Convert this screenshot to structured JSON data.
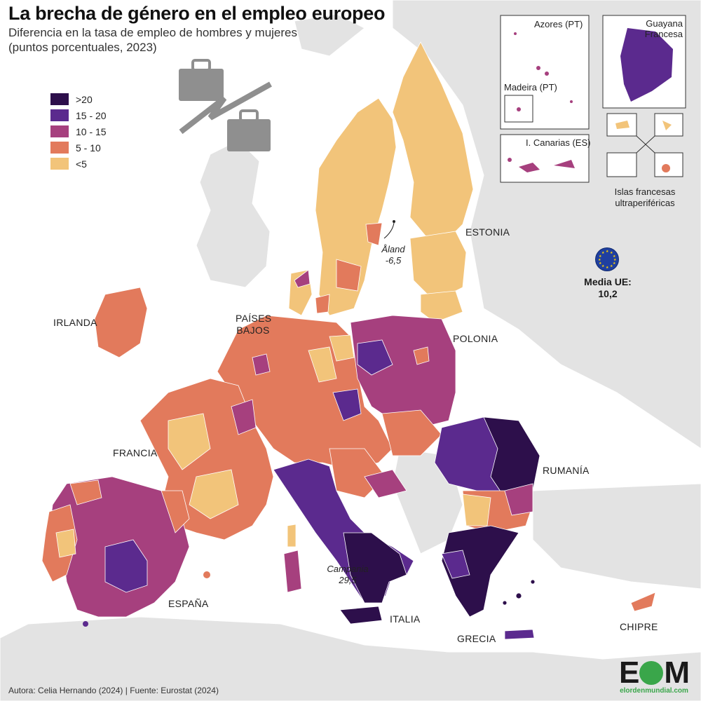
{
  "header": {
    "title": "La brecha de género en el empleo europeo",
    "subtitle": "Diferencia en la tasa de empleo de hombres y mujeres (puntos porcentuales, 2023)"
  },
  "legend": {
    "items": [
      {
        "label": ">20",
        "color": "#2d0f4b"
      },
      {
        "label": "15 - 20",
        "color": "#5b2a8e"
      },
      {
        "label": "10 - 15",
        "color": "#a6407e"
      },
      {
        "label": "5 - 10",
        "color": "#e27a5c"
      },
      {
        "label": "<5",
        "color": "#f2c47a"
      }
    ]
  },
  "labels": {
    "irlanda": "IRLANDA",
    "paises_bajos": "PAÍSES\nBAJOS",
    "francia": "FRANCIA",
    "espana": "ESPAÑA",
    "italia": "ITALIA",
    "grecia": "GRECIA",
    "chipre": "CHIPRE",
    "rumania": "RUMANÍA",
    "polonia": "POLONIA",
    "estonia": "ESTONIA"
  },
  "annotations": {
    "aland": "Åland\n-6,5",
    "campania": "Campania\n29,5"
  },
  "insets": {
    "azores": "Azores (PT)",
    "madeira": "Madeira (PT)",
    "canarias": "I. Canarias (ES)",
    "guayana": "Guayana\nFrancesa",
    "islas_francesas": "Islas francesas\nultraperiféricas"
  },
  "eu_average": {
    "label": "Media UE:",
    "value": "10,2"
  },
  "icons": [
    "briefcase-icon",
    "eu-flag-icon"
  ],
  "source": "Autora: Celia Hernando (2024) | Fuente: Eurostat  (2024)",
  "logo": {
    "mark": "EOM",
    "site": "elordenmundial.com"
  }
}
